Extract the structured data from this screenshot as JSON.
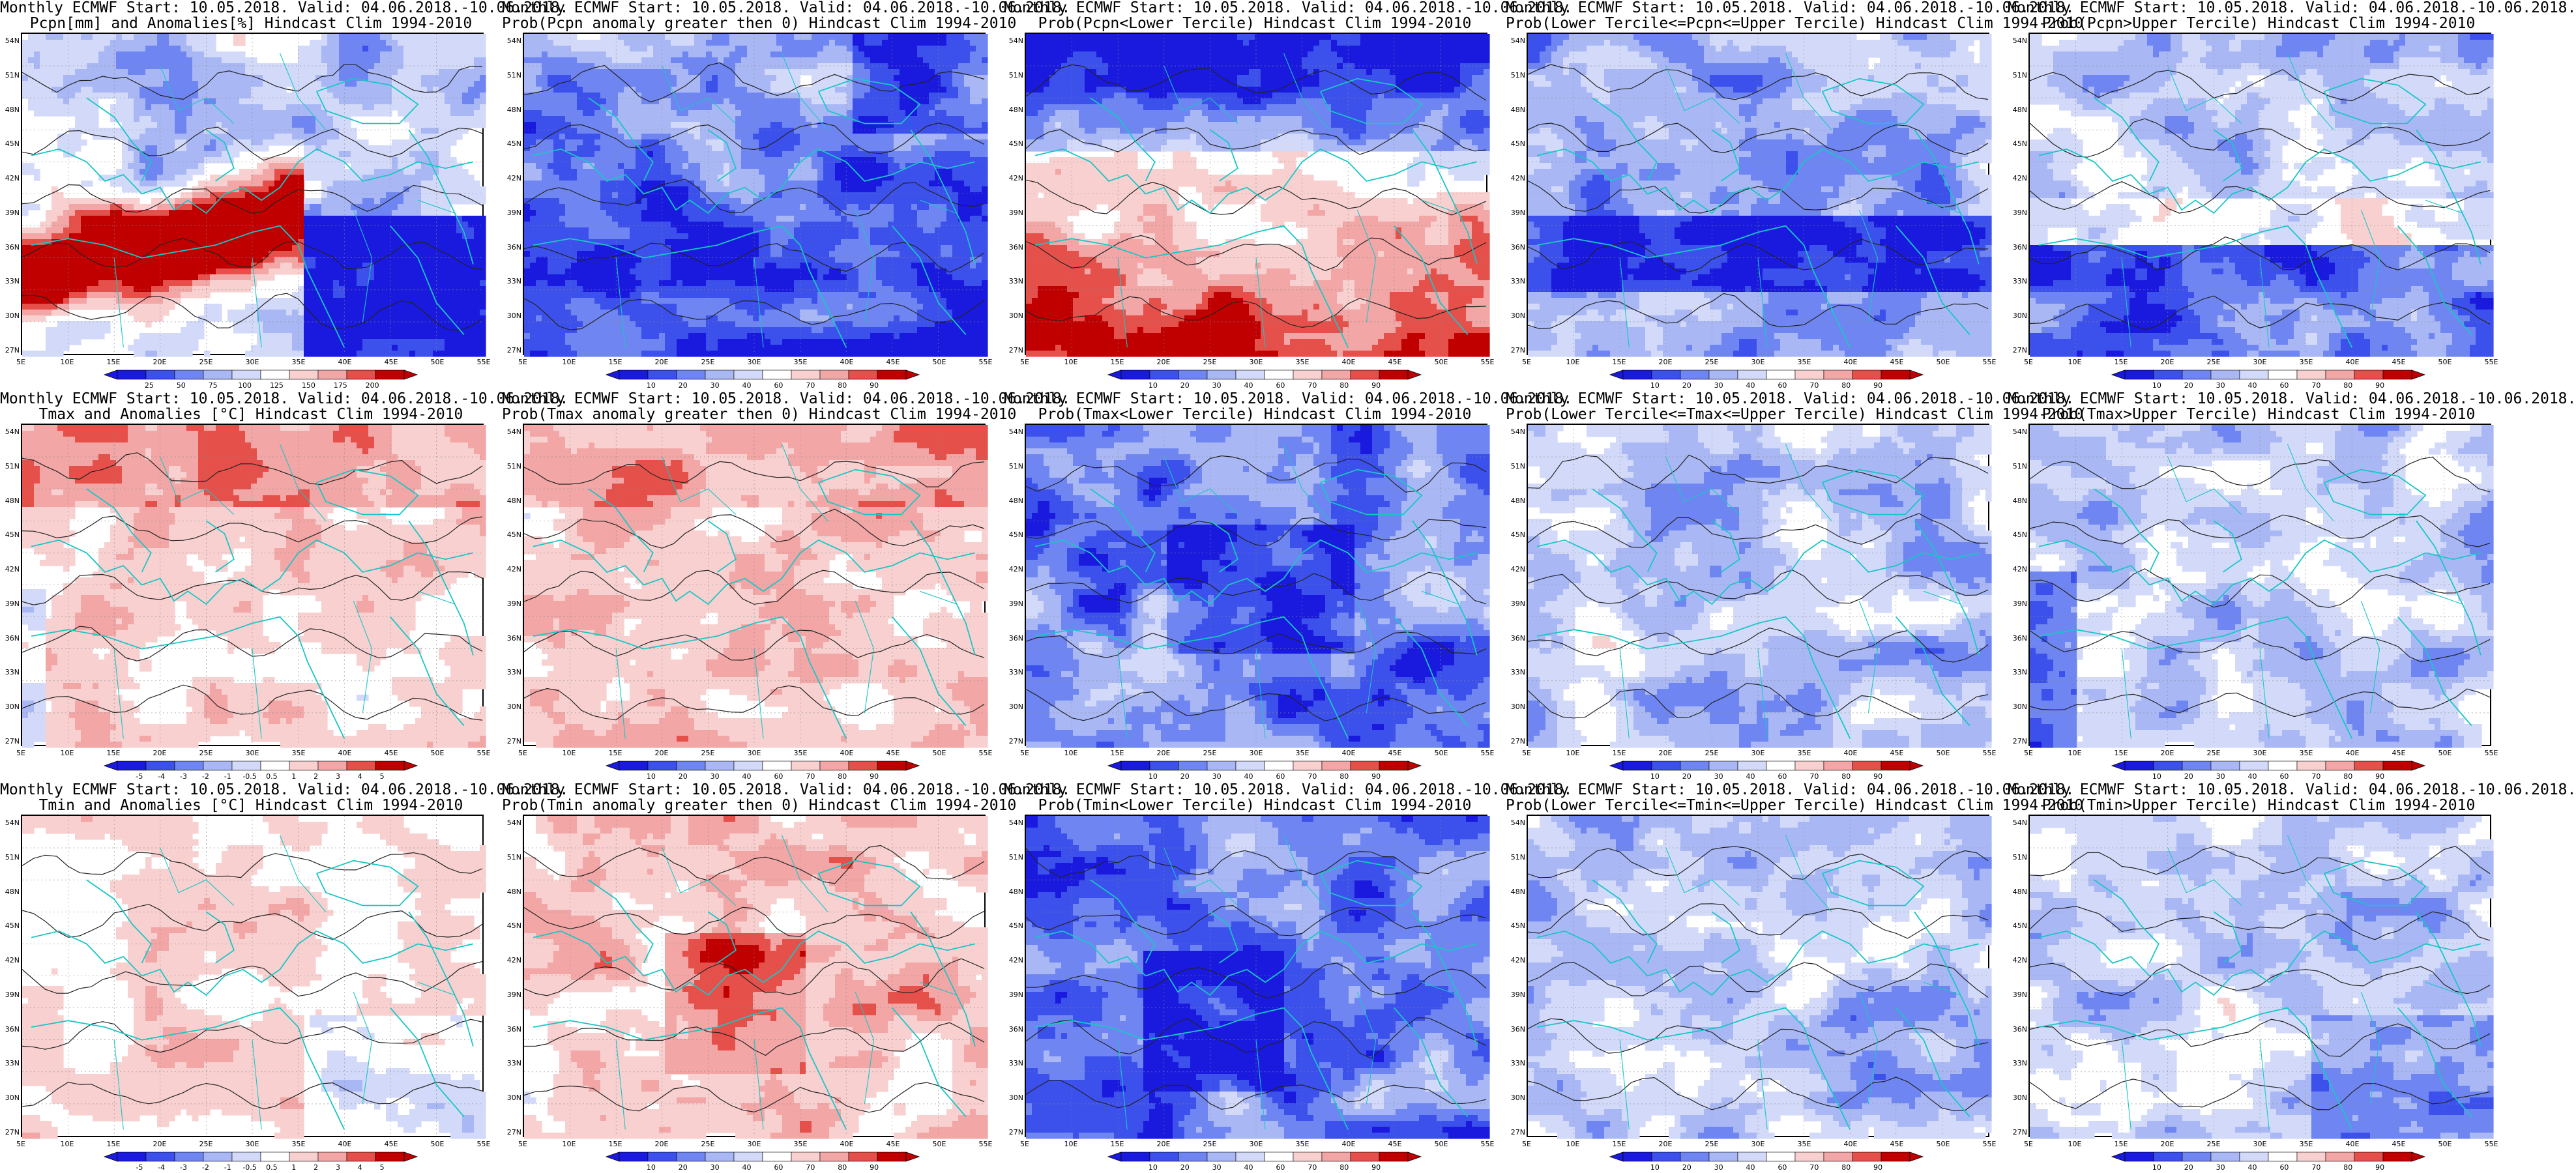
{
  "colors": {
    "deep_blue": "#1a1adf",
    "blue": "#3c50ec",
    "mid_blue": "#6f86f2",
    "light_blue": "#a9b8f5",
    "pale_blue": "#d3daf9",
    "white": "#ffffff",
    "pale_red": "#f8d0d0",
    "light_red": "#f2a6a6",
    "red": "#e5504b",
    "deep_red": "#c00000",
    "coast": "#19c6c6",
    "contour": "#222222"
  },
  "lat_labels": [
    "54N",
    "51N",
    "48N",
    "45N",
    "42N",
    "39N",
    "36N",
    "33N",
    "30N",
    "27N"
  ],
  "lon_labels": [
    "5E",
    "10E",
    "15E",
    "20E",
    "25E",
    "30E",
    "35E",
    "40E",
    "45E",
    "50E",
    "55E"
  ],
  "panels": [
    {
      "title1": "Monthly ECMWF Start: 10.05.2018. Valid: 04.06.2018.-10.06.2018.",
      "title2": "Pcpn[mm] and Anomalies[%] Hindcast Clim 1994-2010",
      "colorbar": [
        "25",
        "50",
        "75",
        "100",
        "125",
        "150",
        "175",
        "200"
      ],
      "style": "pcpn_anom"
    },
    {
      "title1": "Monthly ECMWF Start: 10.05.2018. Valid: 04.06.2018.-10.06.2018.",
      "title2": "Prob(Pcpn anomaly greater then 0) Hindcast Clim 1994-2010",
      "colorbar": [
        "10",
        "20",
        "30",
        "40",
        "60",
        "70",
        "80",
        "90"
      ],
      "style": "pcpn_prob_gt0"
    },
    {
      "title1": "Monthly ECMWF Start: 10.05.2018. Valid: 04.06.2018.-10.06.2018.",
      "title2": "Prob(Pcpn<Lower Tercile) Hindcast Clim 1994-2010",
      "colorbar": [
        "10",
        "20",
        "30",
        "40",
        "60",
        "70",
        "80",
        "90"
      ],
      "style": "pcpn_lower"
    },
    {
      "title1": "Monthly ECMWF Start: 10.05.2018. Valid: 04.06.2018.-10.06.2018.",
      "title2": "Prob(Lower Tercile<=Pcpn<=Upper Tercile) Hindcast Clim 1994-2010",
      "colorbar": [
        "10",
        "20",
        "30",
        "40",
        "60",
        "70",
        "80",
        "90"
      ],
      "style": "pcpn_middle"
    },
    {
      "title1": "Monthly ECMWF Start: 10.05.2018. Valid: 04.06.2018.-10.06.2018.",
      "title2": "Prob(Pcpn>Upper Tercile) Hindcast Clim 1994-2010",
      "colorbar": [
        "10",
        "20",
        "30",
        "40",
        "60",
        "70",
        "80",
        "90"
      ],
      "style": "pcpn_upper"
    },
    {
      "title1": "Monthly ECMWF Start: 10.05.2018. Valid: 04.06.2018.-10.06.2018.",
      "title2": "Tmax and Anomalies [°C] Hindcast Clim 1994-2010",
      "colorbar": [
        "-5",
        "-4",
        "-3",
        "-2",
        "-1",
        "-0.5",
        "0.5",
        "1",
        "2",
        "3",
        "4",
        "5"
      ],
      "style": "tmax_anom"
    },
    {
      "title1": "Monthly ECMWF Start: 10.05.2018. Valid: 04.06.2018.-10.06.2018.",
      "title2": "Prob(Tmax anomaly greater then 0) Hindcast Clim 1994-2010",
      "colorbar": [
        "10",
        "20",
        "30",
        "40",
        "60",
        "70",
        "80",
        "90"
      ],
      "style": "tmax_prob_gt0"
    },
    {
      "title1": "Monthly ECMWF Start: 10.05.2018. Valid: 04.06.2018.-10.06.2018.",
      "title2": "Prob(Tmax<Lower Tercile) Hindcast Clim 1994-2010",
      "colorbar": [
        "10",
        "20",
        "30",
        "40",
        "60",
        "70",
        "80",
        "90"
      ],
      "style": "tmax_lower"
    },
    {
      "title1": "Monthly ECMWF Start: 10.05.2018. Valid: 04.06.2018.-10.06.2018.",
      "title2": "Prob(Lower Tercile<=Tmax<=Upper Tercile) Hindcast Clim 1994-2010",
      "colorbar": [
        "10",
        "20",
        "30",
        "40",
        "60",
        "70",
        "80",
        "90"
      ],
      "style": "tmax_middle"
    },
    {
      "title1": "Monthly ECMWF Start: 10.05.2018. Valid: 04.06.2018.-10.06.2018.",
      "title2": "Prob(Tmax>Upper Tercile) Hindcast Clim 1994-2010",
      "colorbar": [
        "10",
        "20",
        "30",
        "40",
        "60",
        "70",
        "80",
        "90"
      ],
      "style": "tmax_upper"
    },
    {
      "title1": "Monthly ECMWF Start: 10.05.2018. Valid: 04.06.2018.-10.06.2018.",
      "title2": "Tmin and Anomalies [°C] Hindcast Clim 1994-2010",
      "colorbar": [
        "-5",
        "-4",
        "-3",
        "-2",
        "-1",
        "-0.5",
        "0.5",
        "1",
        "2",
        "3",
        "4",
        "5"
      ],
      "style": "tmin_anom"
    },
    {
      "title1": "Monthly ECMWF Start: 10.05.2018. Valid: 04.06.2018.-10.06.2018.",
      "title2": "Prob(Tmin anomaly greater then 0) Hindcast Clim 1994-2010",
      "colorbar": [
        "10",
        "20",
        "30",
        "40",
        "60",
        "70",
        "80",
        "90"
      ],
      "style": "tmin_prob_gt0"
    },
    {
      "title1": "Monthly ECMWF Start: 10.05.2018. Valid: 04.06.2018.-10.06.2018.",
      "title2": "Prob(Tmin<Lower Tercile) Hindcast Clim 1994-2010",
      "colorbar": [
        "10",
        "20",
        "30",
        "40",
        "60",
        "70",
        "80",
        "90"
      ],
      "style": "tmin_lower"
    },
    {
      "title1": "Monthly ECMWF Start: 10.05.2018. Valid: 04.06.2018.-10.06.2018.",
      "title2": "Prob(Lower Tercile<=Tmin<=Upper Tercile) Hindcast Clim 1994-2010",
      "colorbar": [
        "10",
        "20",
        "30",
        "40",
        "60",
        "70",
        "80",
        "90"
      ],
      "style": "tmin_middle"
    },
    {
      "title1": "Monthly ECMWF Start: 10.05.2018. Valid: 04.06.2018.-10.06.2018.",
      "title2": "Prob(Tmin>Upper Tercile) Hindcast Clim 1994-2010",
      "colorbar": [
        "10",
        "20",
        "30",
        "40",
        "60",
        "70",
        "80",
        "90"
      ],
      "style": "tmin_upper"
    }
  ]
}
